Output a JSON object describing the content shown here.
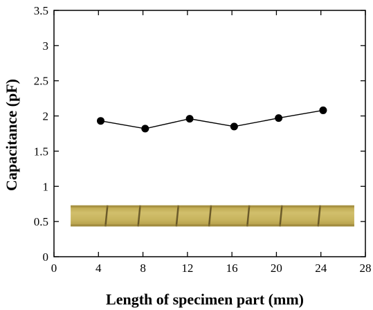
{
  "chart_data": {
    "type": "line",
    "title": "",
    "xlabel": "Length of specimen part (mm)",
    "ylabel": "Capacitance (pF)",
    "xlim": [
      0,
      28
    ],
    "ylim": [
      0,
      3.5
    ],
    "x_ticks": [
      "0",
      "4",
      "8",
      "12",
      "16",
      "20",
      "24",
      "28"
    ],
    "y_ticks": [
      "0",
      "0.5",
      "1",
      "1.5",
      "2",
      "2.5",
      "3",
      "3.5"
    ],
    "x_tick_values": [
      0,
      4,
      8,
      12,
      16,
      20,
      24,
      28
    ],
    "y_tick_values": [
      0,
      0.5,
      1,
      1.5,
      2,
      2.5,
      3,
      3.5
    ],
    "series": [
      {
        "x": [
          4.2,
          8.2,
          12.2,
          16.2,
          20.2,
          24.2
        ],
        "values": [
          1.93,
          1.82,
          1.96,
          1.85,
          1.97,
          2.08
        ]
      }
    ],
    "grid": false,
    "legend": "none",
    "colors": {
      "line": "#000000",
      "marker": "#000000"
    },
    "inset_image": {
      "description": "photo of segmented specimen strip",
      "x_range": [
        1.5,
        27
      ],
      "y_range": [
        0.43,
        0.73
      ],
      "segments": 8,
      "base_color": "#c4b15a"
    }
  }
}
